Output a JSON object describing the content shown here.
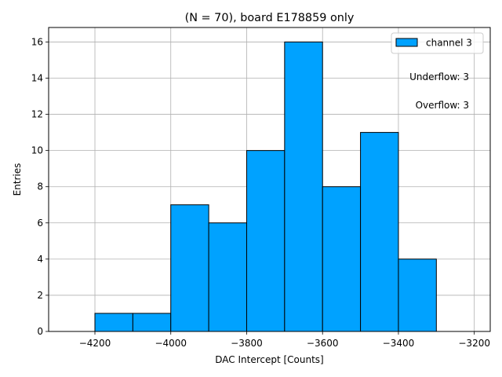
{
  "chart_data": {
    "type": "bar",
    "title": "(N = 70), board E178859 only",
    "xlabel": "DAC Intercept [Counts]",
    "ylabel": "Entries",
    "xlim": [
      -4322,
      -3158
    ],
    "ylim": [
      0,
      16.8
    ],
    "x_ticks": [
      -4200,
      -4000,
      -3800,
      -3600,
      -3400,
      -3200
    ],
    "x_tick_labels": [
      "−4200",
      "−4000",
      "−3800",
      "−3600",
      "−3400",
      "−3200"
    ],
    "y_ticks": [
      0,
      2,
      4,
      6,
      8,
      10,
      12,
      14,
      16
    ],
    "y_tick_labels": [
      "0",
      "2",
      "4",
      "6",
      "8",
      "10",
      "12",
      "14",
      "16"
    ],
    "grid": true,
    "legend_position": "top-right",
    "series": [
      {
        "name": "channel 3",
        "color": "#00a2ff",
        "edge_color": "#000000",
        "bin_edges": [
          -4300,
          -4200,
          -4100,
          -4000,
          -3900,
          -3800,
          -3700,
          -3600,
          -3500,
          -3400,
          -3300,
          -3200
        ],
        "values": [
          0,
          1,
          1,
          7,
          6,
          10,
          16,
          8,
          11,
          4,
          0
        ]
      }
    ],
    "annotations": [
      "Underflow: 3",
      "Overflow: 3"
    ]
  }
}
